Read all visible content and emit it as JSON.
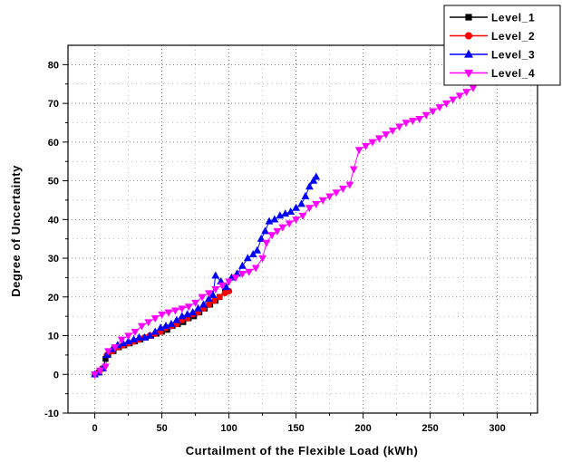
{
  "chart_data": {
    "type": "line",
    "xlabel": "Curtailment of the Flexible Load (kWh)",
    "ylabel": "Degree of Uncertainty",
    "xlim": [
      -20,
      330
    ],
    "ylim": [
      -10,
      85
    ],
    "x_ticks": [
      0,
      50,
      100,
      150,
      200,
      250,
      300
    ],
    "y_ticks": [
      -10,
      0,
      10,
      20,
      30,
      40,
      50,
      60,
      70,
      80
    ],
    "grid": true,
    "legend_position": "top-right",
    "series": [
      {
        "name": "Level_1",
        "color": "#000000",
        "marker": "square",
        "points": [
          [
            0,
            0
          ],
          [
            3,
            0.5
          ],
          [
            6,
            1.5
          ],
          [
            8,
            4
          ],
          [
            10,
            5
          ],
          [
            14,
            6
          ],
          [
            18,
            7
          ],
          [
            22,
            7.5
          ],
          [
            26,
            8
          ],
          [
            30,
            8.5
          ],
          [
            34,
            9
          ],
          [
            38,
            9.5
          ],
          [
            42,
            10
          ],
          [
            46,
            10.5
          ],
          [
            50,
            11
          ],
          [
            54,
            11.5
          ],
          [
            58,
            12.5
          ],
          [
            62,
            13
          ],
          [
            66,
            13.5
          ],
          [
            70,
            14.5
          ],
          [
            74,
            15
          ],
          [
            78,
            16
          ],
          [
            82,
            17
          ],
          [
            86,
            18
          ],
          [
            90,
            19
          ],
          [
            93,
            20
          ],
          [
            97,
            21.5
          ]
        ]
      },
      {
        "name": "Level_2",
        "color": "#ff0000",
        "marker": "circle",
        "points": [
          [
            0,
            0
          ],
          [
            3,
            0.5
          ],
          [
            6,
            1.5
          ],
          [
            9,
            5
          ],
          [
            13,
            6
          ],
          [
            17,
            7
          ],
          [
            21,
            7.5
          ],
          [
            25,
            8
          ],
          [
            29,
            8.5
          ],
          [
            33,
            9
          ],
          [
            37,
            9.5
          ],
          [
            41,
            10
          ],
          [
            45,
            10.5
          ],
          [
            49,
            11
          ],
          [
            53,
            12
          ],
          [
            57,
            12.5
          ],
          [
            61,
            13
          ],
          [
            65,
            14
          ],
          [
            69,
            14.5
          ],
          [
            73,
            15.5
          ],
          [
            77,
            16
          ],
          [
            81,
            17
          ],
          [
            85,
            18
          ],
          [
            89,
            19
          ],
          [
            93,
            20
          ],
          [
            97,
            21
          ],
          [
            100,
            21.5
          ]
        ]
      },
      {
        "name": "Level_3",
        "color": "#0000ff",
        "marker": "triangle-up",
        "points": [
          [
            0,
            0
          ],
          [
            3,
            0.5
          ],
          [
            6,
            1.5
          ],
          [
            9,
            5
          ],
          [
            13,
            6.5
          ],
          [
            17,
            7.5
          ],
          [
            21,
            8
          ],
          [
            25,
            8.5
          ],
          [
            29,
            9
          ],
          [
            33,
            9.5
          ],
          [
            37,
            9.5
          ],
          [
            41,
            10
          ],
          [
            45,
            11
          ],
          [
            49,
            12
          ],
          [
            53,
            12.5
          ],
          [
            57,
            13
          ],
          [
            61,
            14
          ],
          [
            65,
            15
          ],
          [
            69,
            15.5
          ],
          [
            73,
            16
          ],
          [
            77,
            17
          ],
          [
            81,
            18
          ],
          [
            85,
            19.5
          ],
          [
            88,
            20.5
          ],
          [
            90,
            25.5
          ],
          [
            94,
            24
          ],
          [
            98,
            22.5
          ],
          [
            102,
            25
          ],
          [
            106,
            26
          ],
          [
            110,
            28
          ],
          [
            114,
            30
          ],
          [
            118,
            31
          ],
          [
            121,
            32
          ],
          [
            124,
            35
          ],
          [
            127,
            37
          ],
          [
            130,
            39.5
          ],
          [
            134,
            40
          ],
          [
            138,
            41
          ],
          [
            142,
            41.5
          ],
          [
            146,
            42
          ],
          [
            150,
            43
          ],
          [
            154,
            44
          ],
          [
            157,
            46
          ],
          [
            160,
            48.5
          ],
          [
            163,
            50
          ],
          [
            165,
            51
          ]
        ]
      },
      {
        "name": "Level_4",
        "color": "#ff00ff",
        "marker": "triangle-down",
        "points": [
          [
            0,
            0
          ],
          [
            4,
            1
          ],
          [
            8,
            2
          ],
          [
            10,
            6
          ],
          [
            15,
            7
          ],
          [
            20,
            9
          ],
          [
            25,
            10
          ],
          [
            30,
            11
          ],
          [
            35,
            12.5
          ],
          [
            40,
            13.5
          ],
          [
            45,
            14.5
          ],
          [
            50,
            15.5
          ],
          [
            55,
            16
          ],
          [
            60,
            16.5
          ],
          [
            65,
            17
          ],
          [
            70,
            17.5
          ],
          [
            75,
            18.5
          ],
          [
            80,
            20
          ],
          [
            85,
            21
          ],
          [
            90,
            22
          ],
          [
            95,
            23
          ],
          [
            100,
            24
          ],
          [
            105,
            25
          ],
          [
            110,
            26
          ],
          [
            115,
            26.5
          ],
          [
            120,
            27.5
          ],
          [
            125,
            30
          ],
          [
            128,
            34
          ],
          [
            132,
            36
          ],
          [
            136,
            37
          ],
          [
            140,
            38
          ],
          [
            145,
            39
          ],
          [
            150,
            40
          ],
          [
            155,
            41
          ],
          [
            160,
            43
          ],
          [
            165,
            44
          ],
          [
            170,
            45
          ],
          [
            175,
            46
          ],
          [
            180,
            47
          ],
          [
            185,
            48
          ],
          [
            190,
            49
          ],
          [
            193,
            53
          ],
          [
            197,
            58
          ],
          [
            202,
            59
          ],
          [
            207,
            60
          ],
          [
            212,
            61
          ],
          [
            217,
            62
          ],
          [
            222,
            63
          ],
          [
            227,
            64
          ],
          [
            232,
            65
          ],
          [
            237,
            65.5
          ],
          [
            242,
            66
          ],
          [
            247,
            67
          ],
          [
            252,
            68
          ],
          [
            257,
            69
          ],
          [
            262,
            70
          ],
          [
            267,
            71
          ],
          [
            272,
            72
          ],
          [
            277,
            73
          ],
          [
            282,
            74
          ]
        ]
      }
    ]
  }
}
